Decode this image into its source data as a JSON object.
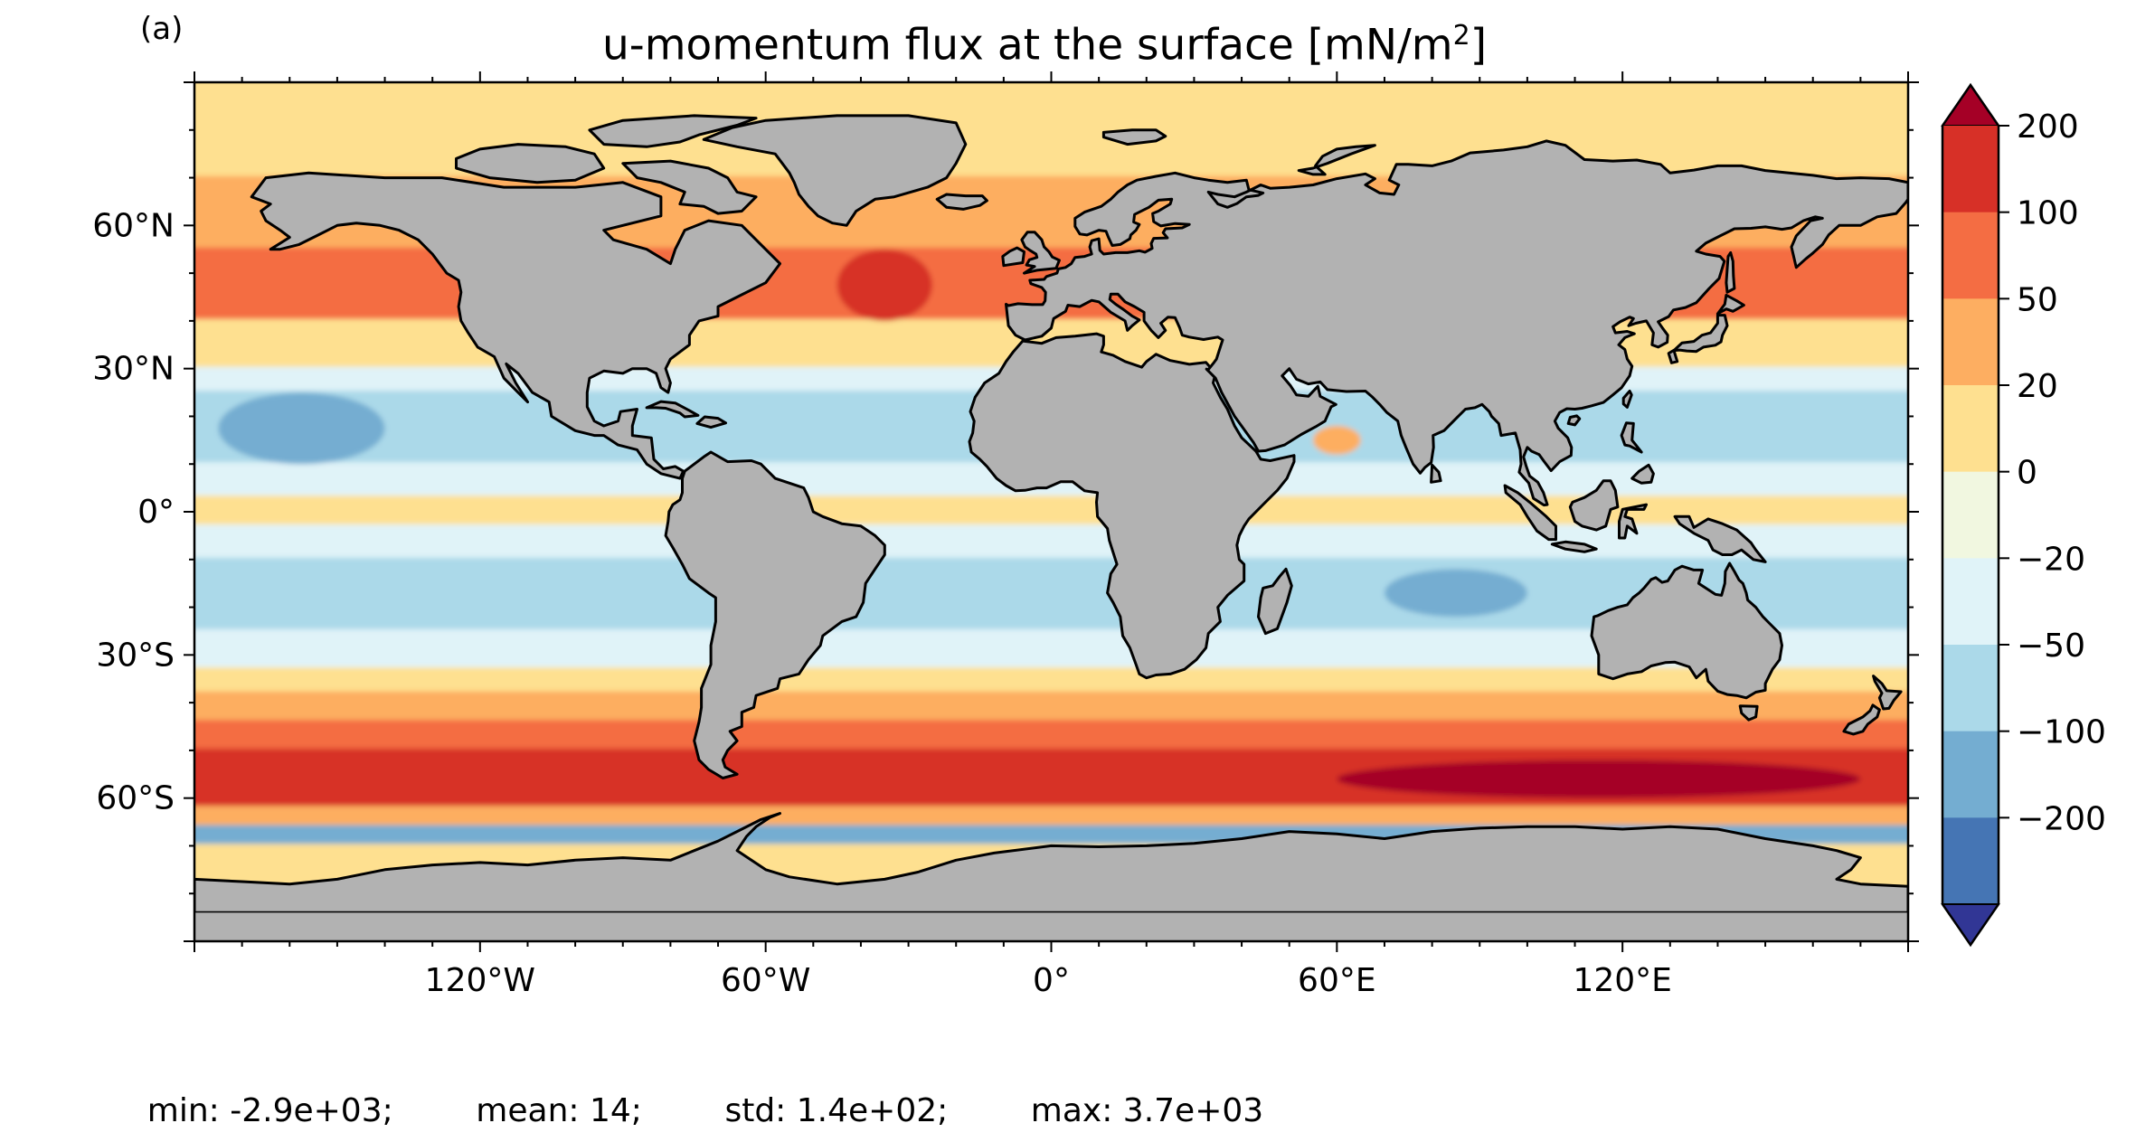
{
  "panel_label": "(a)",
  "title": {
    "main": "u-momentum flux at the surface [mN/m",
    "superscript": "2",
    "close": "]"
  },
  "stats": {
    "min": "min: -2.9e+03;",
    "mean": "mean: 14;",
    "std": "std: 1.4e+02;",
    "max": "max: 3.7e+03"
  },
  "colors": {
    "land": "#b2b2b2",
    "coast": "#000000"
  },
  "colorbar": {
    "labels": [
      "200",
      "100",
      "50",
      "20",
      "0",
      "−20",
      "−50",
      "−100",
      "−200"
    ],
    "bins_top_to_bottom": [
      "#d73027",
      "#f46d43",
      "#fdae61",
      "#fee090",
      "#f1f7e0",
      "#e0f3f8",
      "#abd9e9",
      "#74add1",
      "#4575b4"
    ],
    "extend_max_color": "#a50026",
    "extend_min_color": "#313695"
  },
  "axes": {
    "x_ticks": [
      "120°W",
      "60°W",
      "0°",
      "60°E",
      "120°E"
    ],
    "y_ticks": [
      "60°N",
      "30°N",
      "0°",
      "30°S",
      "60°S"
    ]
  },
  "chart_data": {
    "type": "heatmap",
    "projection": "PlateCarree",
    "lon_range": [
      -180,
      180
    ],
    "lat_range": [
      -90,
      90
    ],
    "levels": [
      -200,
      -100,
      -50,
      -20,
      0,
      20,
      50,
      100,
      200
    ],
    "extend": "both",
    "zonal_bands": [
      {
        "lat_from": 90,
        "lat_to": 70,
        "class": "0 to 20"
      },
      {
        "lat_from": 70,
        "lat_to": 55,
        "class": "20 to 50"
      },
      {
        "lat_from": 55,
        "lat_to": 40,
        "class": "50 to 100"
      },
      {
        "lat_from": 40,
        "lat_to": 30,
        "class": "0 to 20"
      },
      {
        "lat_from": 30,
        "lat_to": 25,
        "class": "-50 to -20"
      },
      {
        "lat_from": 25,
        "lat_to": 10,
        "class": "-100 to -50"
      },
      {
        "lat_from": 10,
        "lat_to": 3,
        "class": "-50 to -20"
      },
      {
        "lat_from": 3,
        "lat_to": -3,
        "class": "0 to 20"
      },
      {
        "lat_from": -3,
        "lat_to": -10,
        "class": "-50 to -20"
      },
      {
        "lat_from": -10,
        "lat_to": -25,
        "class": "-100 to -50"
      },
      {
        "lat_from": -25,
        "lat_to": -33,
        "class": "-50 to -20"
      },
      {
        "lat_from": -33,
        "lat_to": -38,
        "class": "0 to 20"
      },
      {
        "lat_from": -38,
        "lat_to": -44,
        "class": "20 to 50"
      },
      {
        "lat_from": -44,
        "lat_to": -50,
        "class": "50 to 100"
      },
      {
        "lat_from": -50,
        "lat_to": -62,
        "class": "100 to 200"
      },
      {
        "lat_from": -62,
        "lat_to": -66,
        "class": "20 to 50"
      },
      {
        "lat_from": -66,
        "lat_to": -70,
        "class": "-200 to -100"
      },
      {
        "lat_from": -70,
        "lat_to": -90,
        "class": "0 to 20"
      }
    ],
    "regional_features": [
      {
        "region": "North Pacific trade winds",
        "lon": [
          -175,
          -140
        ],
        "lat": [
          10,
          25
        ],
        "class": "-200 to -100"
      },
      {
        "region": "Southern Indian Ocean trades",
        "lon": [
          70,
          100
        ],
        "lat": [
          -22,
          -12
        ],
        "class": "-200 to -100"
      },
      {
        "region": "North Atlantic westerlies",
        "lon": [
          -45,
          -25
        ],
        "lat": [
          40,
          55
        ],
        "class": "100 to 200"
      },
      {
        "region": "Arabian Sea monsoon",
        "lon": [
          55,
          65
        ],
        "lat": [
          12,
          18
        ],
        "class": "20 to 50"
      },
      {
        "region": "Southern Ocean core",
        "lon": [
          60,
          170
        ],
        "lat": [
          -60,
          -52
        ],
        "class": "> 200"
      }
    ]
  }
}
